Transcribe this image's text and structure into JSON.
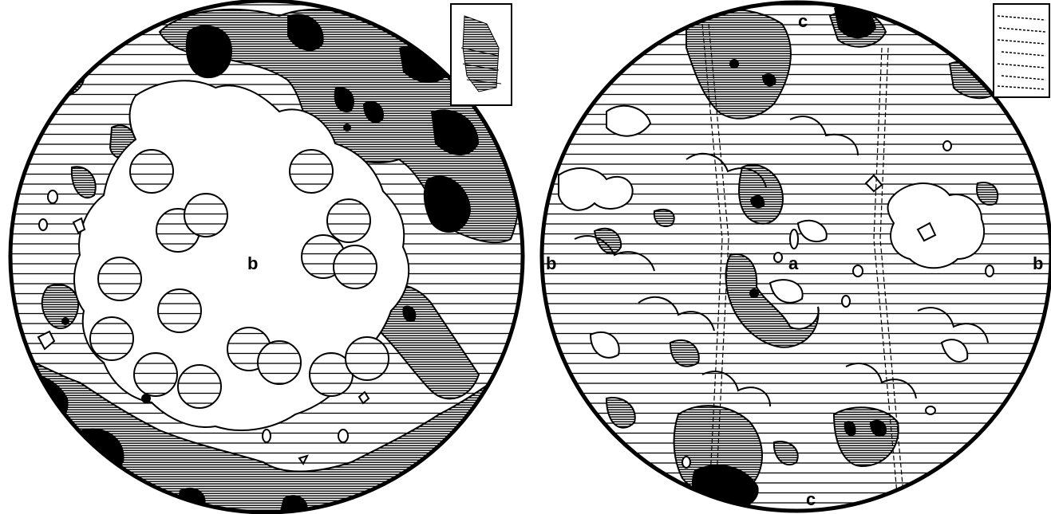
{
  "figure": {
    "left_panel": {
      "labels": {
        "center": "b"
      }
    },
    "right_panel": {
      "labels": {
        "center": "a",
        "left": "b",
        "right": "b",
        "top": "c",
        "bottom": "c"
      }
    }
  },
  "colors": {
    "ink": "#000000",
    "background": "#ffffff",
    "shade": "#8a8a8a"
  }
}
